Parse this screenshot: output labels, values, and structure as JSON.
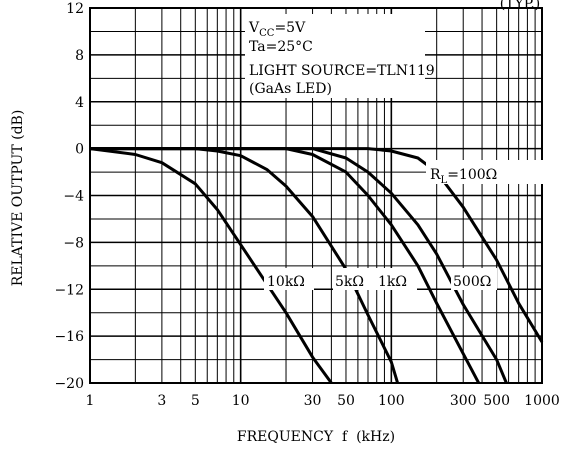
{
  "header_fragment": "(TYP.)",
  "chart_data": {
    "type": "line",
    "xscale": "log",
    "xlim": [
      1,
      1000
    ],
    "ylim": [
      -20,
      12
    ],
    "grid": true,
    "xlabel": "FREQUENCY  f  (kHz)",
    "ylabel": "RELATIVE  OUTPUT  (dB)",
    "x_ticks": [
      "1",
      "3",
      "5",
      "10",
      "30",
      "50",
      "100",
      "300",
      "500",
      "1000"
    ],
    "y_ticks": [
      "12",
      "8",
      "4",
      "0",
      "−4",
      "−8",
      "−12",
      "−16",
      "−20"
    ],
    "conditions": {
      "vcc_prefix": "V",
      "vcc_sub": "CC",
      "vcc_value": "=5V",
      "ta": "Ta=25°C",
      "light_source": "LIGHT SOURCE=TLN119",
      "led": "(GaAs LED)"
    },
    "rl_prefix": "R",
    "rl_sub": "L",
    "series": [
      {
        "name": "10kΩ",
        "points": [
          [
            1,
            0
          ],
          [
            2,
            -0.5
          ],
          [
            3,
            -1.2
          ],
          [
            5,
            -3
          ],
          [
            7,
            -5.2
          ],
          [
            10,
            -8.2
          ],
          [
            20,
            -14
          ],
          [
            30,
            -17.8
          ],
          [
            40,
            -20
          ]
        ]
      },
      {
        "name": "5kΩ",
        "points": [
          [
            1,
            0
          ],
          [
            5,
            0
          ],
          [
            7,
            -0.2
          ],
          [
            10,
            -0.6
          ],
          [
            15,
            -1.8
          ],
          [
            20,
            -3.2
          ],
          [
            30,
            -5.8
          ],
          [
            50,
            -10.3
          ],
          [
            70,
            -14.2
          ],
          [
            100,
            -18.2
          ],
          [
            110,
            -20
          ]
        ]
      },
      {
        "name": "1kΩ",
        "points": [
          [
            1,
            0
          ],
          [
            20,
            0
          ],
          [
            30,
            -0.5
          ],
          [
            50,
            -2
          ],
          [
            70,
            -4
          ],
          [
            100,
            -6.5
          ],
          [
            150,
            -10
          ],
          [
            200,
            -13.2
          ],
          [
            300,
            -17.5
          ],
          [
            380,
            -20
          ]
        ]
      },
      {
        "name": "500Ω",
        "points": [
          [
            1,
            0
          ],
          [
            30,
            0
          ],
          [
            50,
            -0.8
          ],
          [
            70,
            -2
          ],
          [
            100,
            -3.8
          ],
          [
            150,
            -6.5
          ],
          [
            200,
            -9
          ],
          [
            300,
            -13.3
          ],
          [
            500,
            -18
          ],
          [
            580,
            -20
          ]
        ]
      },
      {
        "name": "100Ω",
        "points": [
          [
            1,
            0
          ],
          [
            70,
            0
          ],
          [
            100,
            -0.2
          ],
          [
            150,
            -0.8
          ],
          [
            200,
            -2
          ],
          [
            300,
            -5
          ],
          [
            500,
            -9.5
          ],
          [
            700,
            -13.2
          ],
          [
            1000,
            -16.5
          ]
        ]
      }
    ]
  }
}
